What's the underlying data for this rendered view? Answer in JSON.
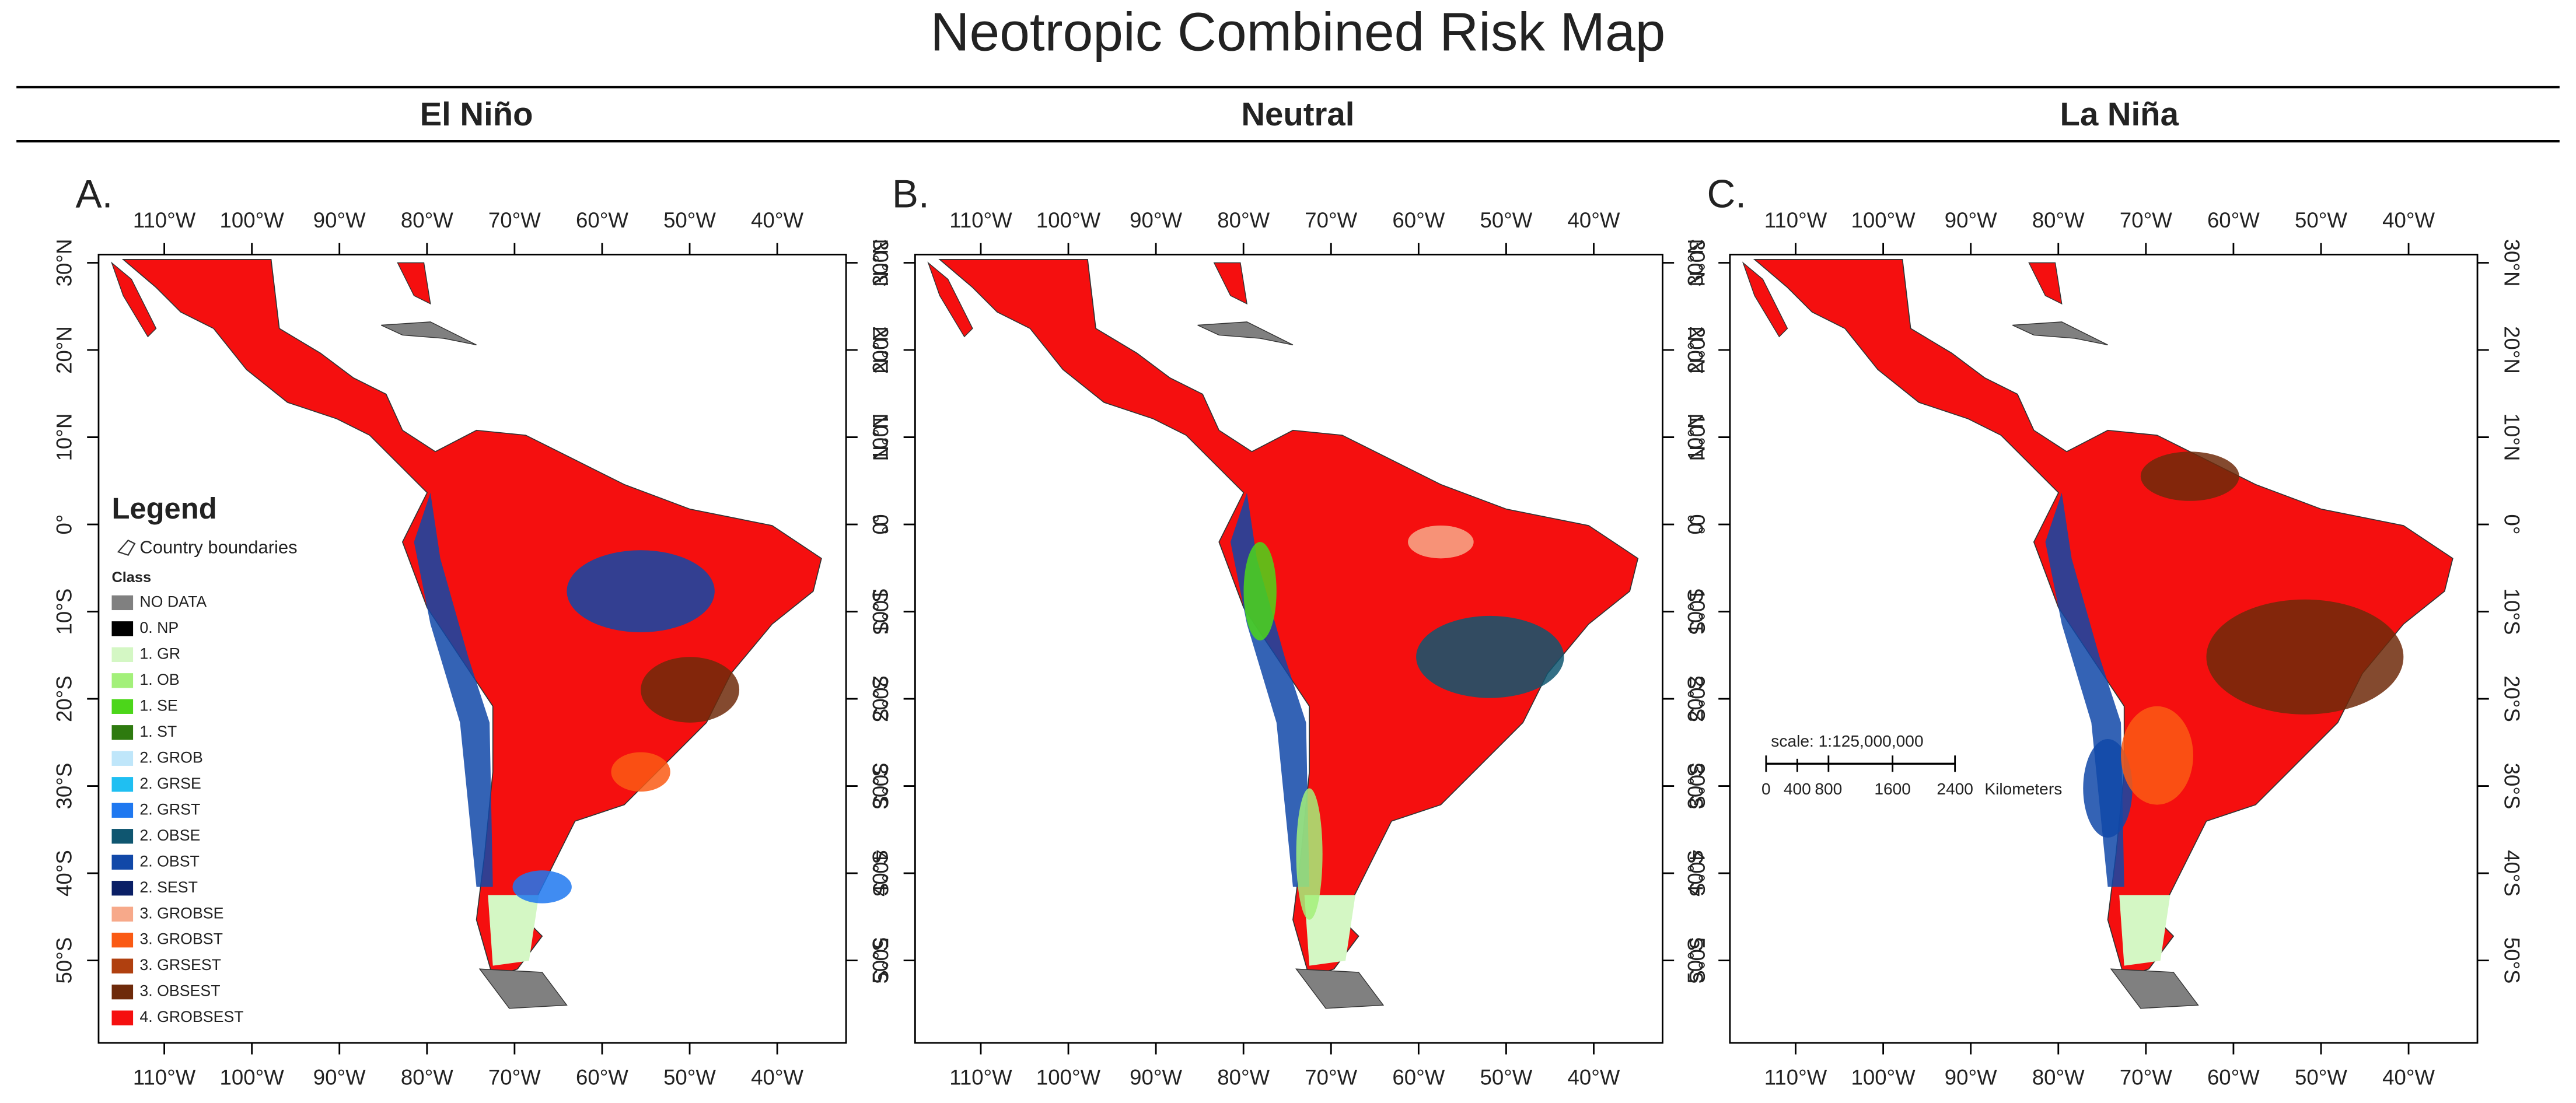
{
  "title": "Neotropic Combined Risk Map",
  "columns": [
    "El Niño",
    "Neutral",
    "La Niña"
  ],
  "panels": [
    {
      "letter": "A."
    },
    {
      "letter": "B."
    },
    {
      "letter": "C."
    }
  ],
  "longitude_labels": [
    "110°W",
    "100°W",
    "90°W",
    "80°W",
    "70°W",
    "60°W",
    "50°W",
    "40°W"
  ],
  "latitude_labels": [
    "30°N",
    "20°N",
    "10°N",
    "0°",
    "10°S",
    "20°S",
    "30°S",
    "40°S",
    "50°S"
  ],
  "legend": {
    "title": "Legend",
    "boundary_label": "Country boundaries",
    "class_title": "Class",
    "classes": [
      {
        "label": "NO DATA",
        "color": "#808080"
      },
      {
        "label": "0. NP",
        "color": "#000000"
      },
      {
        "label": "1. GR",
        "color": "#d4f7c4"
      },
      {
        "label": "1. OB",
        "color": "#a3f07a"
      },
      {
        "label": "1. SE",
        "color": "#4cd61a"
      },
      {
        "label": "1. ST",
        "color": "#2e7a0f"
      },
      {
        "label": "2. GROB",
        "color": "#bfe6fa"
      },
      {
        "label": "2. GRSE",
        "color": "#1fbff2"
      },
      {
        "label": "2. GRST",
        "color": "#1f78f0"
      },
      {
        "label": "2. OBSE",
        "color": "#0f5670"
      },
      {
        "label": "2. OBST",
        "color": "#1148a8"
      },
      {
        "label": "2. SEST",
        "color": "#0a1f66"
      },
      {
        "label": "3. GROBSE",
        "color": "#f7a98a"
      },
      {
        "label": "3. GROBST",
        "color": "#fa5a14"
      },
      {
        "label": "3. GRSEST",
        "color": "#b0400f"
      },
      {
        "label": "3. OBSEST",
        "color": "#6e2a0a"
      },
      {
        "label": "4. GROBSEST",
        "color": "#f50f0f"
      }
    ]
  },
  "scale": {
    "label": "scale:  1:125,000,000",
    "ticks": [
      "0",
      "400",
      "800",
      "1600",
      "2400"
    ],
    "unit": "Kilometers"
  }
}
